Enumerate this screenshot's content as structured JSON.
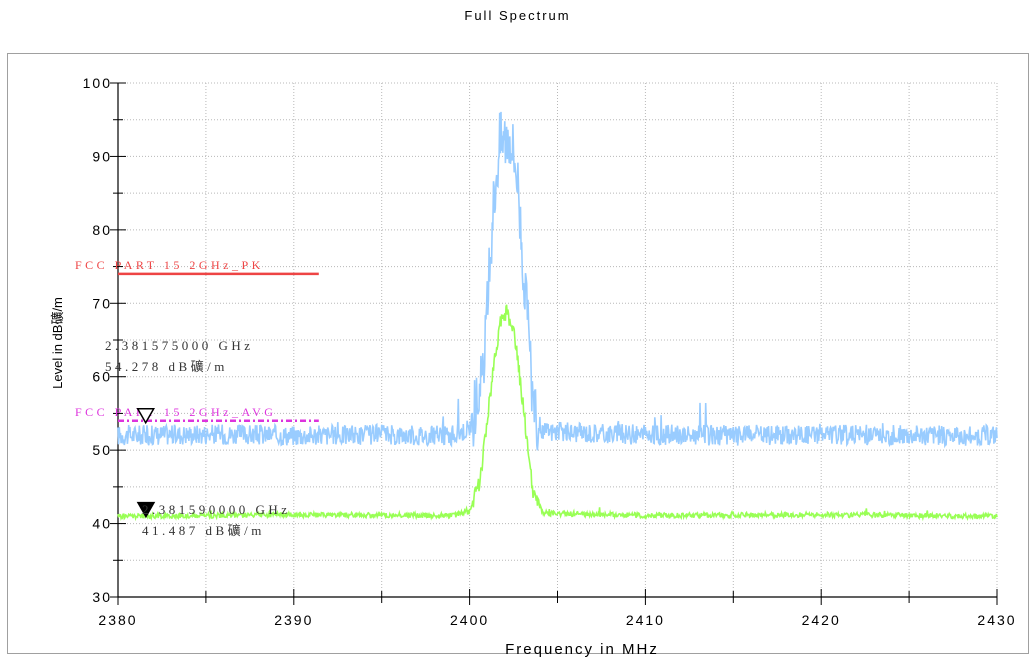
{
  "chart_data": {
    "type": "line",
    "title": "Full Spectrum",
    "xlabel": "Frequency in MHz",
    "ylabel": "Level in dB礦/m",
    "xlim": [
      2380,
      2430
    ],
    "ylim": [
      30,
      100
    ],
    "x_ticks": [
      2380,
      2390,
      2400,
      2410,
      2420,
      2430
    ],
    "y_ticks": [
      30,
      40,
      50,
      60,
      70,
      80,
      90,
      100
    ],
    "grid": true,
    "series": [
      {
        "name": "",
        "color": "#99ccff",
        "description": "peak trace",
        "points": [
          [
            2380,
            52
          ],
          [
            2385,
            52.2
          ],
          [
            2390,
            52
          ],
          [
            2395,
            52.1
          ],
          [
            2399,
            52
          ],
          [
            2400,
            53
          ],
          [
            2400.8,
            60
          ],
          [
            2401.3,
            82
          ],
          [
            2401.7,
            92
          ],
          [
            2402.3,
            93
          ],
          [
            2402.7,
            88
          ],
          [
            2403.2,
            70
          ],
          [
            2403.7,
            54
          ],
          [
            2404.3,
            52.5
          ],
          [
            2410,
            52.1
          ],
          [
            2415,
            52
          ],
          [
            2420,
            52.2
          ],
          [
            2425,
            52
          ],
          [
            2430,
            52
          ]
        ]
      },
      {
        "name": "",
        "color": "#99ff55",
        "description": "average trace",
        "points": [
          [
            2380,
            41
          ],
          [
            2390,
            41.2
          ],
          [
            2399,
            41.1
          ],
          [
            2400,
            41.6
          ],
          [
            2400.6,
            46
          ],
          [
            2401.2,
            58
          ],
          [
            2401.7,
            67
          ],
          [
            2402.1,
            69
          ],
          [
            2402.6,
            65
          ],
          [
            2403.1,
            55
          ],
          [
            2403.6,
            44
          ],
          [
            2404.2,
            41.4
          ],
          [
            2410,
            41.1
          ],
          [
            2420,
            41.2
          ],
          [
            2430,
            41
          ]
        ]
      }
    ],
    "limit_lines": [
      {
        "label": "FCC PART 15 2GHz_PK",
        "value": 74,
        "x_start": 2380,
        "x_end": 2390,
        "color": "#ee4444",
        "style": "solid"
      },
      {
        "label": "FCC PART 15 2GHz_AVG",
        "value": 54,
        "x_start": 2380,
        "x_end": 2390,
        "color": "#dd33dd",
        "style": "dash-dot"
      }
    ],
    "markers": [
      {
        "type": "hollow-triangle",
        "x": 2381.575,
        "y": 54.278,
        "freq_label": "2.381575000 GHz",
        "level_label": "54.278 dB礦/m"
      },
      {
        "type": "filled-triangle",
        "x": 2381.59,
        "y": 41.487,
        "freq_label": "2.381590000 GHz",
        "level_label": "41.487 dB礦/m"
      }
    ]
  }
}
